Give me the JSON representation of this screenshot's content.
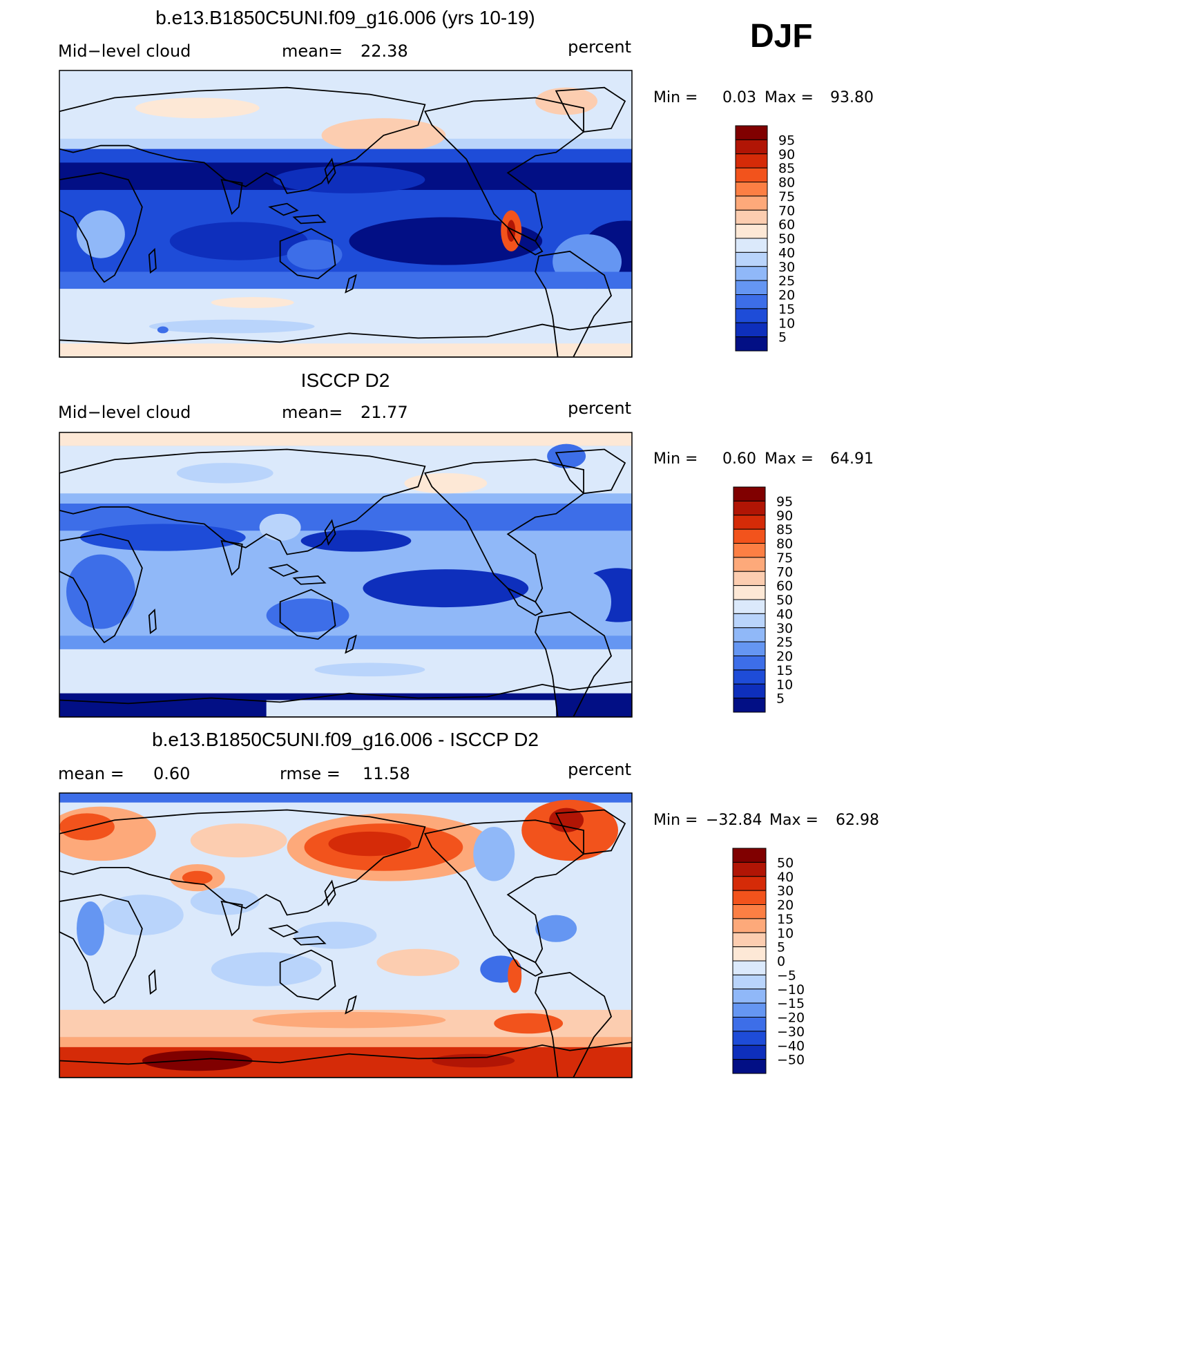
{
  "season": "DJF",
  "chart_data": [
    {
      "type": "heatmap",
      "title": "b.e13.B1850C5UNI.f09_g16.006 (yrs 10-19)",
      "left_label": "Mid−level cloud",
      "center_label": "mean=",
      "center_value": "22.38",
      "units": "percent",
      "min_label": "Min =",
      "min": "0.03",
      "max_label": "Max =",
      "max": "93.80",
      "levels": [
        "95",
        "90",
        "85",
        "80",
        "75",
        "70",
        "60",
        "50",
        "40",
        "30",
        "25",
        "20",
        "15",
        "10",
        "5"
      ],
      "colors": [
        "#800000",
        "#b11505",
        "#d52b08",
        "#f2531c",
        "#fc7f44",
        "#fda97a",
        "#fccdb0",
        "#fde8d6",
        "#dbe9fb",
        "#b9d4fb",
        "#90b8f8",
        "#6596f2",
        "#3d6ee8",
        "#1e4cd8",
        "#0e2fbc",
        "#020f85"
      ]
    },
    {
      "type": "heatmap",
      "title": "ISCCP D2",
      "left_label": "Mid−level cloud",
      "center_label": "mean=",
      "center_value": "21.77",
      "units": "percent",
      "min_label": "Min =",
      "min": "0.60",
      "max_label": "Max =",
      "max": "64.91",
      "levels": [
        "95",
        "90",
        "85",
        "80",
        "75",
        "70",
        "60",
        "50",
        "40",
        "30",
        "25",
        "20",
        "15",
        "10",
        "5"
      ],
      "colors": [
        "#800000",
        "#b11505",
        "#d52b08",
        "#f2531c",
        "#fc7f44",
        "#fda97a",
        "#fccdb0",
        "#fde8d6",
        "#dbe9fb",
        "#b9d4fb",
        "#90b8f8",
        "#6596f2",
        "#3d6ee8",
        "#1e4cd8",
        "#0e2fbc",
        "#020f85"
      ]
    },
    {
      "type": "heatmap",
      "title": "b.e13.B1850C5UNI.f09_g16.006 - ISCCP D2",
      "left_label": "mean =",
      "left_value": "0.60",
      "center_label": "rmse =",
      "center_value": "11.58",
      "units": "percent",
      "min_label": "Min =",
      "min": "−32.84",
      "max_label": "Max =",
      "max": "62.98",
      "levels": [
        "50",
        "40",
        "30",
        "20",
        "15",
        "10",
        "5",
        "0",
        "−5",
        "−10",
        "−15",
        "−20",
        "−30",
        "−40",
        "−50"
      ],
      "colors": [
        "#800000",
        "#b11505",
        "#d52b08",
        "#f2531c",
        "#fc7f44",
        "#fda97a",
        "#fccdb0",
        "#fde8d6",
        "#dbe9fb",
        "#b9d4fb",
        "#90b8f8",
        "#6596f2",
        "#3d6ee8",
        "#1e4cd8",
        "#0e2fbc",
        "#020f85"
      ]
    }
  ]
}
